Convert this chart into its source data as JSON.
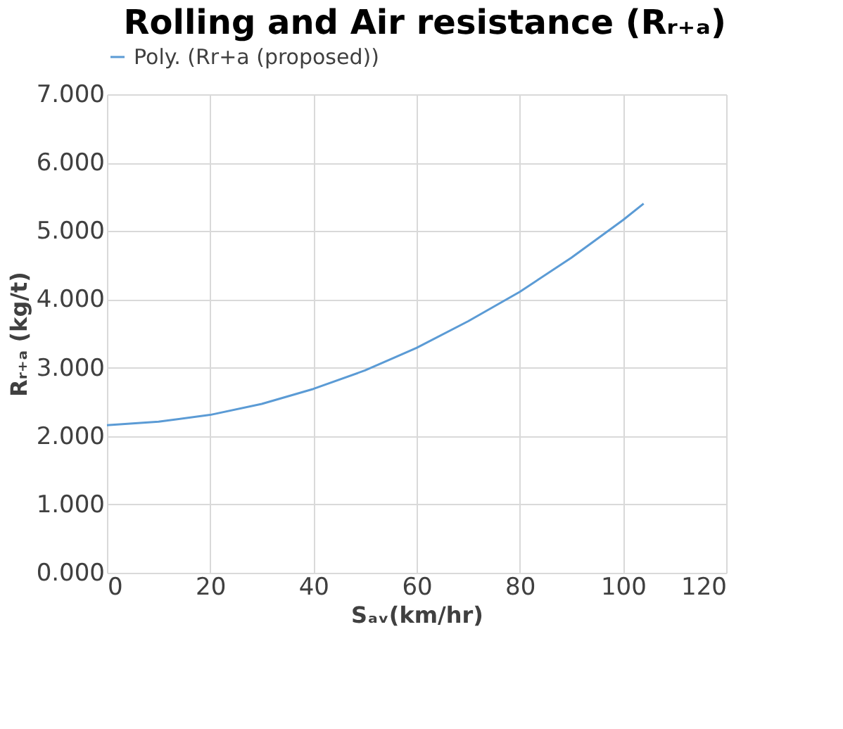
{
  "chart_data": {
    "type": "line",
    "title": "Rolling and Air resistance (Rᵣ₊ₐ)",
    "xlabel": "Sₐᵥ(km/hr)",
    "ylabel": "Rᵣ₊ₐ (kg/t)",
    "x": [
      0,
      10,
      20,
      30,
      40,
      50,
      60,
      70,
      80,
      90,
      100,
      104
    ],
    "series": [
      {
        "name": "Poly. (Rr+a (proposed))",
        "color": "#5b9bd5",
        "values": [
          2.16,
          2.21,
          2.31,
          2.47,
          2.69,
          2.96,
          3.29,
          3.68,
          4.11,
          4.61,
          5.16,
          5.4
        ]
      }
    ],
    "xlim": [
      0,
      120
    ],
    "xticks": [
      0,
      20,
      40,
      60,
      80,
      100,
      120
    ],
    "ylim": [
      0,
      7
    ],
    "yticks": [
      {
        "value": 0,
        "label": "0.000"
      },
      {
        "value": 1,
        "label": "1.000"
      },
      {
        "value": 2,
        "label": "2.000"
      },
      {
        "value": 3,
        "label": "3.000"
      },
      {
        "value": 4,
        "label": "4.000"
      },
      {
        "value": 5,
        "label": "5.000"
      },
      {
        "value": 6,
        "label": "6.000"
      },
      {
        "value": 7,
        "label": "7.000"
      }
    ],
    "grid": true,
    "legend": "top",
    "marker": "none",
    "line_style": "solid"
  }
}
